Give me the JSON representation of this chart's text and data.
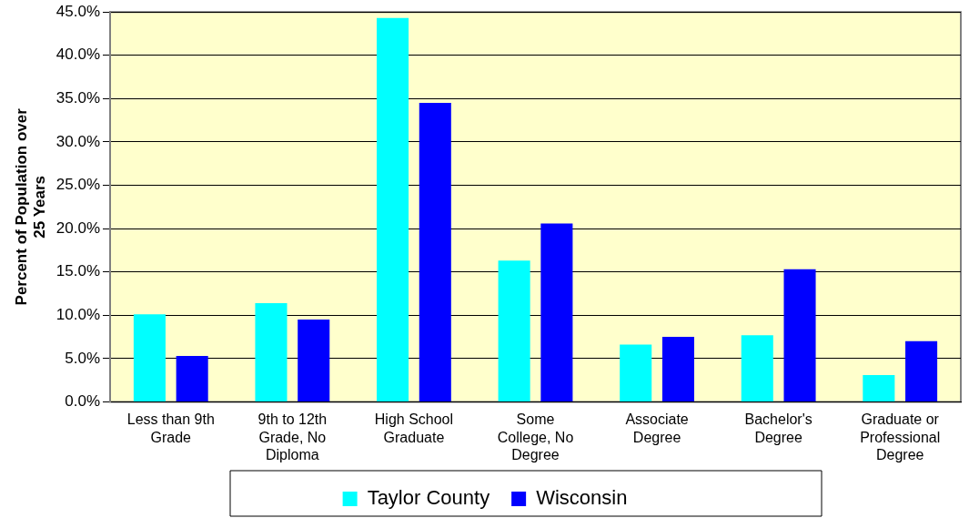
{
  "chart_data": {
    "type": "bar",
    "ylabel": "Percent of Population over 25 Years",
    "categories": [
      "Less than 9th Grade",
      "9th to 12th Grade, No Diploma",
      "High School Graduate",
      "Some College, No Degree",
      "Associate Degree",
      "Bachelor's Degree",
      "Graduate or Professional Degree"
    ],
    "series": [
      {
        "name": "Taylor County",
        "color": "#00ffff",
        "values": [
          10.1,
          11.4,
          44.3,
          16.3,
          6.6,
          7.7,
          3.1
        ]
      },
      {
        "name": "Wisconsin",
        "color": "#0000ff",
        "values": [
          5.3,
          9.5,
          34.5,
          20.6,
          7.5,
          15.3,
          7.0
        ]
      }
    ],
    "ylim": [
      0,
      45
    ],
    "yticks": [
      {
        "value": 0,
        "label": "0.0%"
      },
      {
        "value": 5,
        "label": "5.0%"
      },
      {
        "value": 10,
        "label": "10.0%"
      },
      {
        "value": 15,
        "label": "15.0%"
      },
      {
        "value": 20,
        "label": "20.0%"
      },
      {
        "value": 25,
        "label": "25.0%"
      },
      {
        "value": 30,
        "label": "30.0%"
      },
      {
        "value": 35,
        "label": "35.0%"
      },
      {
        "value": 40,
        "label": "40.0%"
      },
      {
        "value": 45,
        "label": "45.0%"
      }
    ],
    "grid": "y",
    "legend": "bottom"
  }
}
